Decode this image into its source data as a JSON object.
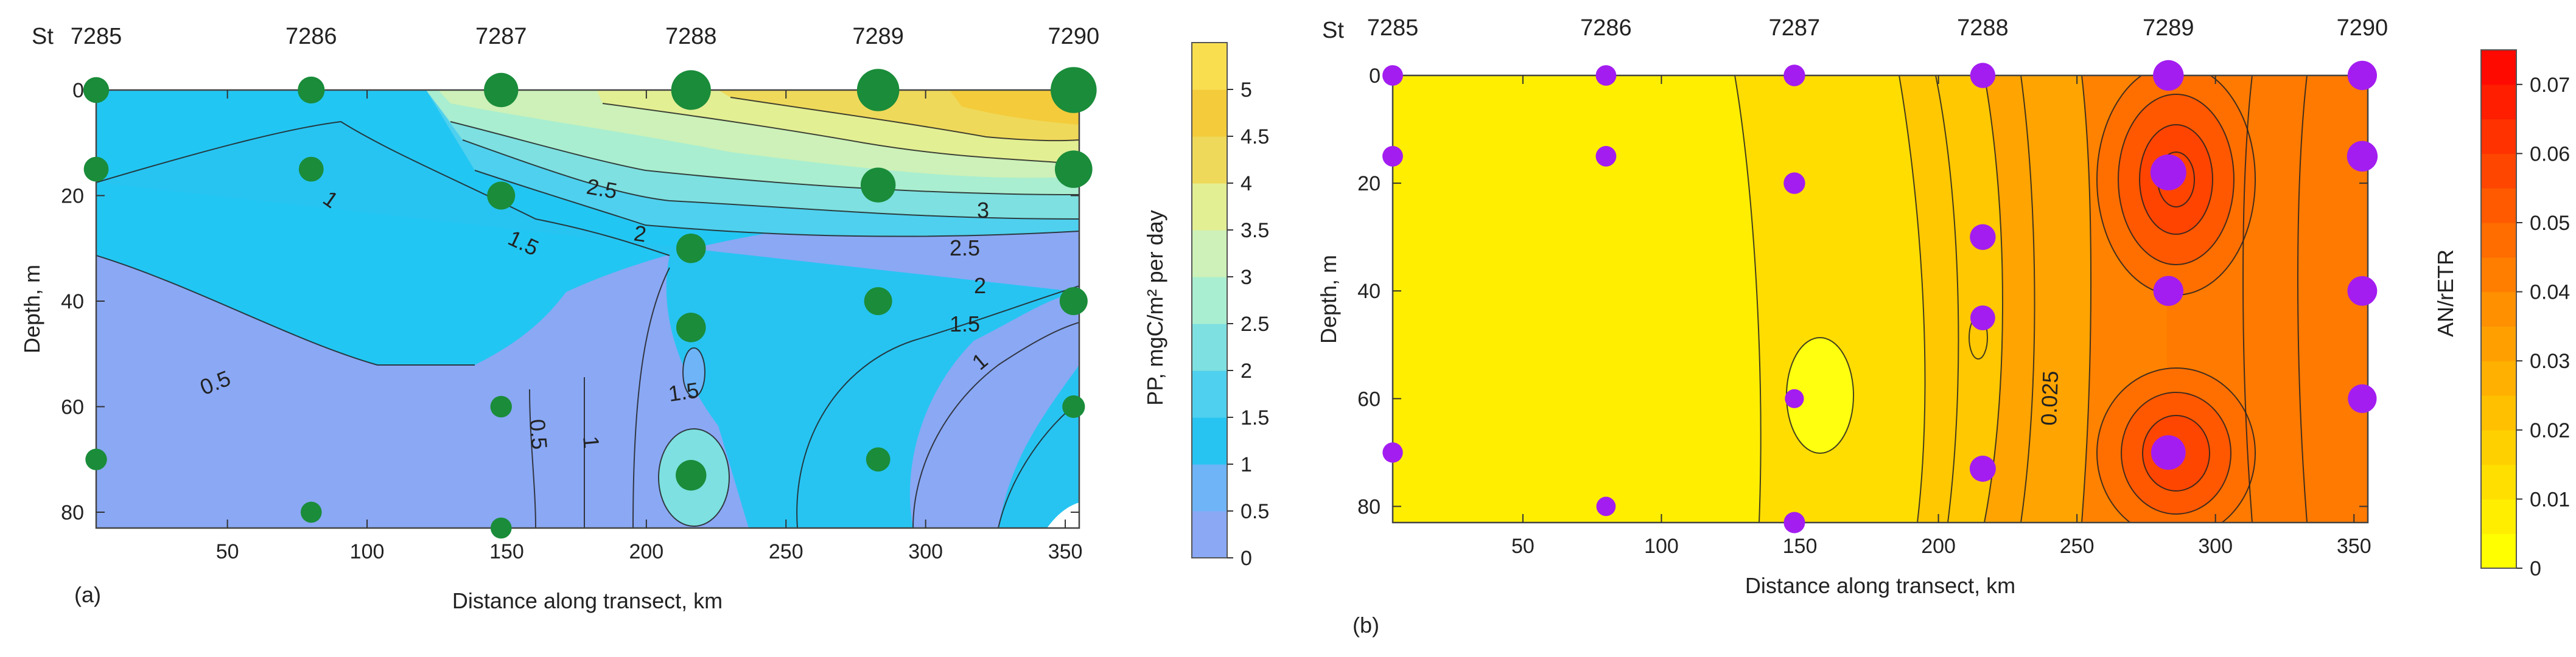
{
  "chart_data": [
    {
      "id": "a",
      "type": "heatmap",
      "panel_label": "(a)",
      "title": "",
      "xlabel": "Distance along transect, km",
      "ylabel": "Depth, m",
      "xlim": [
        3,
        355
      ],
      "ylim": [
        0,
        83
      ],
      "x_ticks": [
        "50",
        "100",
        "150",
        "200",
        "250",
        "300",
        "350"
      ],
      "y_ticks": [
        "0",
        "20",
        "40",
        "60",
        "80"
      ],
      "station_prefix": "St",
      "stations": [
        {
          "name": "7285",
          "x": 3
        },
        {
          "name": "7286",
          "x": 80
        },
        {
          "name": "7287",
          "x": 148
        },
        {
          "name": "7288",
          "x": 216
        },
        {
          "name": "7289",
          "x": 283
        },
        {
          "name": "7290",
          "x": 353
        }
      ],
      "colorbar": {
        "label": "PP, mgC/m² per day",
        "min": 0,
        "max": 5.5,
        "ticks": [
          "0",
          "0.5",
          "1",
          "1.5",
          "2",
          "2.5",
          "3",
          "3.5",
          "4",
          "4.5",
          "5"
        ],
        "colors": [
          "#8aa8f4",
          "#6fb4f7",
          "#27c4f2",
          "#4fd0ee",
          "#7ee0e0",
          "#a9eed0",
          "#cdf1b8",
          "#e3ef93",
          "#efd95a",
          "#f4cb3a",
          "#f9de50"
        ]
      },
      "contour_labels": [
        "0.5",
        "1",
        "1.5",
        "2",
        "2.5",
        "3",
        "0.5",
        "1",
        "1.5",
        "2",
        "2.5",
        "1",
        "1.5"
      ],
      "samples": [
        {
          "x": 3,
          "depth": 0,
          "value": 1.2
        },
        {
          "x": 3,
          "depth": 15,
          "value": 1.0
        },
        {
          "x": 3,
          "depth": 70,
          "value": 0.4
        },
        {
          "x": 80,
          "depth": 0,
          "value": 1.4
        },
        {
          "x": 80,
          "depth": 15,
          "value": 1.0
        },
        {
          "x": 80,
          "depth": 80,
          "value": 0.3
        },
        {
          "x": 148,
          "depth": 0,
          "value": 2.8
        },
        {
          "x": 148,
          "depth": 20,
          "value": 1.6
        },
        {
          "x": 148,
          "depth": 60,
          "value": 0.4
        },
        {
          "x": 148,
          "depth": 83,
          "value": 0.3
        },
        {
          "x": 216,
          "depth": 0,
          "value": 3.8
        },
        {
          "x": 216,
          "depth": 30,
          "value": 1.9
        },
        {
          "x": 216,
          "depth": 45,
          "value": 1.9
        },
        {
          "x": 216,
          "depth": 73,
          "value": 2.1
        },
        {
          "x": 283,
          "depth": 0,
          "value": 4.3
        },
        {
          "x": 283,
          "depth": 18,
          "value": 2.9
        },
        {
          "x": 283,
          "depth": 40,
          "value": 1.6
        },
        {
          "x": 283,
          "depth": 70,
          "value": 0.9
        },
        {
          "x": 353,
          "depth": 0,
          "value": 5.0
        },
        {
          "x": 353,
          "depth": 15,
          "value": 3.4
        },
        {
          "x": 353,
          "depth": 40,
          "value": 1.6
        },
        {
          "x": 353,
          "depth": 60,
          "value": 0.6
        }
      ]
    },
    {
      "id": "b",
      "type": "heatmap",
      "panel_label": "(b)",
      "title": "",
      "xlabel": "Distance along transect, km",
      "ylabel": "Depth, m",
      "xlim": [
        3,
        355
      ],
      "ylim": [
        0,
        83
      ],
      "x_ticks": [
        "50",
        "100",
        "150",
        "200",
        "250",
        "300",
        "350"
      ],
      "y_ticks": [
        "0",
        "20",
        "40",
        "60",
        "80"
      ],
      "station_prefix": "St",
      "stations": [
        {
          "name": "7285",
          "x": 3
        },
        {
          "name": "7286",
          "x": 80
        },
        {
          "name": "7287",
          "x": 148
        },
        {
          "name": "7288",
          "x": 216
        },
        {
          "name": "7289",
          "x": 283
        },
        {
          "name": "7290",
          "x": 353
        }
      ],
      "colorbar": {
        "label": "AN/rETR",
        "min": 0,
        "max": 0.075,
        "ticks": [
          "0",
          "0.01",
          "0.02",
          "0.03",
          "0.04",
          "0.05",
          "0.06",
          "0.07"
        ],
        "colors": [
          "#ffff00",
          "#ffee00",
          "#ffdf00",
          "#ffd000",
          "#ffc000",
          "#ffb000",
          "#ffa000",
          "#ff9000",
          "#ff7e00",
          "#ff6c00",
          "#ff5a00",
          "#ff4600",
          "#ff3200",
          "#ff1e00",
          "#ff0a00"
        ]
      },
      "contour_labels": [
        "0.025"
      ],
      "samples": [
        {
          "x": 3,
          "depth": 0,
          "value": 0.011
        },
        {
          "x": 3,
          "depth": 15,
          "value": 0.011
        },
        {
          "x": 3,
          "depth": 70,
          "value": 0.01
        },
        {
          "x": 80,
          "depth": 0,
          "value": 0.011
        },
        {
          "x": 80,
          "depth": 15,
          "value": 0.011
        },
        {
          "x": 80,
          "depth": 80,
          "value": 0.007
        },
        {
          "x": 148,
          "depth": 0,
          "value": 0.014
        },
        {
          "x": 148,
          "depth": 20,
          "value": 0.014
        },
        {
          "x": 148,
          "depth": 60,
          "value": 0.006
        },
        {
          "x": 148,
          "depth": 83,
          "value": 0.013
        },
        {
          "x": 216,
          "depth": 0,
          "value": 0.025
        },
        {
          "x": 216,
          "depth": 30,
          "value": 0.027
        },
        {
          "x": 216,
          "depth": 45,
          "value": 0.024
        },
        {
          "x": 216,
          "depth": 73,
          "value": 0.028
        },
        {
          "x": 283,
          "depth": 0,
          "value": 0.042
        },
        {
          "x": 283,
          "depth": 18,
          "value": 0.058
        },
        {
          "x": 283,
          "depth": 40,
          "value": 0.04
        },
        {
          "x": 283,
          "depth": 70,
          "value": 0.054
        },
        {
          "x": 353,
          "depth": 0,
          "value": 0.038
        },
        {
          "x": 353,
          "depth": 15,
          "value": 0.042
        },
        {
          "x": 353,
          "depth": 40,
          "value": 0.039
        },
        {
          "x": 353,
          "depth": 60,
          "value": 0.036
        }
      ]
    }
  ]
}
